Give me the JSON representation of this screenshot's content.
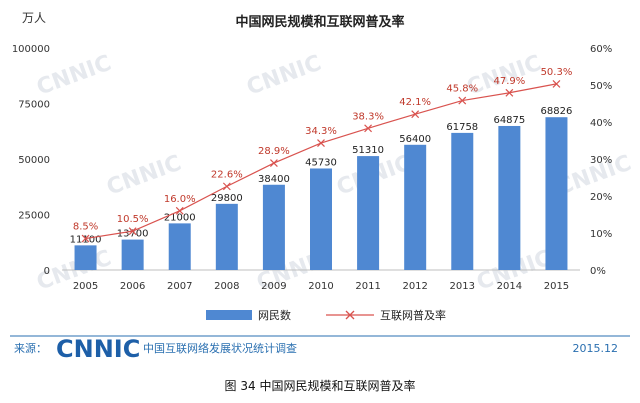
{
  "chart_data": {
    "type": "bar",
    "title": "中国网民规模和互联网普及率",
    "left_unit": "万人",
    "categories": [
      "2005",
      "2006",
      "2007",
      "2008",
      "2009",
      "2010",
      "2011",
      "2012",
      "2013",
      "2014",
      "2015"
    ],
    "series": [
      {
        "name": "网民数",
        "type": "bar",
        "color": "#4f88d2",
        "values": [
          11100,
          13700,
          21000,
          29800,
          38400,
          45730,
          51310,
          56400,
          61758,
          64875,
          68826
        ]
      },
      {
        "name": "互联网普及率",
        "type": "line",
        "color": "#d9534f",
        "values": [
          8.5,
          10.5,
          16.0,
          22.6,
          28.9,
          34.3,
          38.3,
          42.1,
          45.8,
          47.9,
          50.3
        ]
      }
    ],
    "bar_labels": [
      "11100",
      "13700",
      "21000",
      "29800",
      "38400",
      "45730",
      "51310",
      "56400",
      "61758",
      "64875",
      "68826"
    ],
    "rate_labels": [
      "8.5%",
      "10.5%",
      "16.0%",
      "22.6%",
      "28.9%",
      "34.3%",
      "38.3%",
      "42.1%",
      "45.8%",
      "47.9%",
      "50.3%"
    ],
    "left_axis": {
      "range": [
        0,
        100000
      ],
      "ticks": [
        "0",
        "25000",
        "50000",
        "75000",
        "100000"
      ],
      "tick_values": [
        0,
        25000,
        50000,
        75000,
        100000
      ]
    },
    "right_axis": {
      "range": [
        0,
        60
      ],
      "ticks": [
        "0%",
        "10%",
        "20%",
        "30%",
        "40%",
        "50%",
        "60%"
      ],
      "tick_values": [
        0,
        10,
        20,
        30,
        40,
        50,
        60
      ]
    },
    "legend": [
      "网民数",
      "互联网普及率"
    ],
    "legend_position": "bottom",
    "grid": false
  },
  "footer": {
    "source_label": "来源：",
    "logo": "CNNIC",
    "source_text": "中国互联网络发展状况统计调查",
    "date": "2015.12"
  },
  "watermark": "CNNIC",
  "caption": "图  34    中国网民规模和互联网普及率"
}
